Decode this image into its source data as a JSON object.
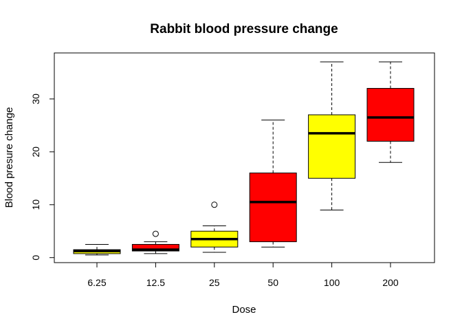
{
  "chart_data": {
    "type": "box",
    "title": "Rabbit blood pressure change",
    "xlabel": "Dose",
    "ylabel": "Blood presure change",
    "categories": [
      "6.25",
      "12.5",
      "25",
      "50",
      "100",
      "200"
    ],
    "box_colors": [
      "#ffff00",
      "#ff0000",
      "#ffff00",
      "#ff0000",
      "#ffff00",
      "#ff0000"
    ],
    "boxes": [
      {
        "whisker_low": 0.5,
        "q1": 0.75,
        "median": 1.25,
        "q3": 1.5,
        "whisker_high": 2.5,
        "outliers": []
      },
      {
        "whisker_low": 0.75,
        "q1": 1.25,
        "median": 1.5,
        "q3": 2.5,
        "whisker_high": 3.0,
        "outliers": [
          4.5
        ]
      },
      {
        "whisker_low": 1.0,
        "q1": 2.0,
        "median": 3.5,
        "q3": 5.0,
        "whisker_high": 6.0,
        "outliers": [
          10.0
        ]
      },
      {
        "whisker_low": 2.0,
        "q1": 3.0,
        "median": 10.5,
        "q3": 16.0,
        "whisker_high": 26.0,
        "outliers": []
      },
      {
        "whisker_low": 9.0,
        "q1": 15.0,
        "median": 23.5,
        "q3": 27.0,
        "whisker_high": 37.0,
        "outliers": []
      },
      {
        "whisker_low": 18.0,
        "q1": 22.0,
        "median": 26.5,
        "q3": 32.0,
        "whisker_high": 37.0,
        "outliers": []
      }
    ],
    "yticks": [
      0,
      10,
      20,
      30
    ],
    "ylim": [
      -1,
      38
    ],
    "grid": false,
    "legend": "none"
  }
}
